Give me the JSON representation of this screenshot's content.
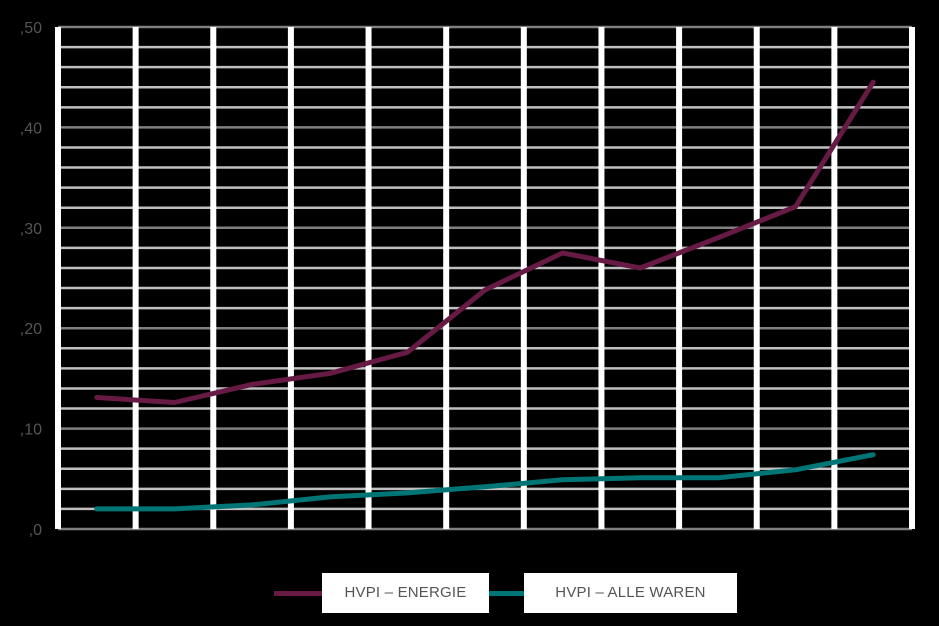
{
  "chart_data": {
    "type": "line",
    "title": "",
    "xlabel": "",
    "ylabel": "",
    "x": [
      1,
      2,
      3,
      4,
      5,
      6,
      7,
      8,
      9,
      10,
      11
    ],
    "ylim": [
      0,
      0.5
    ],
    "yticks": [
      0,
      0.1,
      0.2,
      0.3,
      0.4,
      0.5
    ],
    "ytick_labels": [
      ",0",
      ",10",
      ",20",
      ",30",
      ",40",
      ",50"
    ],
    "minor_grid_step": 0.02,
    "grid": true,
    "legend_position": "bottom",
    "series": [
      {
        "name": "HVPI – ENERGIE",
        "color": "#661a44",
        "values": [
          0.131,
          0.126,
          0.144,
          0.155,
          0.176,
          0.238,
          0.275,
          0.26,
          0.29,
          0.321,
          0.445
        ]
      },
      {
        "name": "HVPI – ALLE WAREN",
        "color": "#007575",
        "values": [
          0.02,
          0.02,
          0.024,
          0.032,
          0.036,
          0.042,
          0.049,
          0.051,
          0.051,
          0.059,
          0.074
        ]
      }
    ]
  },
  "legend": {
    "items": [
      {
        "label": "HVPI – ENERGIE",
        "color": "#661a44"
      },
      {
        "label": "HVPI – ALLE WAREN",
        "color": "#007575"
      }
    ]
  },
  "colors": {
    "background": "#000000",
    "grid_minor": "#c0c0c0",
    "grid_major": "#808080",
    "vertical_bars": "#ffffff",
    "tick_text": "#555555"
  }
}
